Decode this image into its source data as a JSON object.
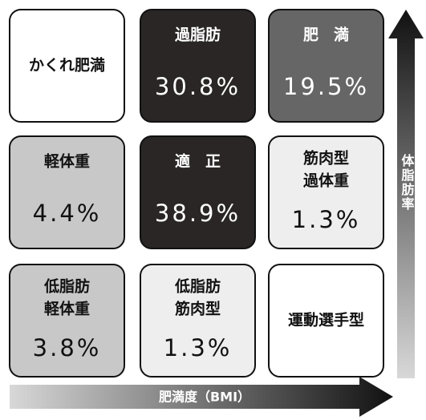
{
  "cells": [
    {
      "label": [
        "かくれ肥満"
      ]
    },
    {
      "label": [
        "過脂肪"
      ],
      "value": "30.8%"
    },
    {
      "label": [
        "肥　満"
      ],
      "value": "19.5%"
    },
    {
      "label": [
        "軽体重"
      ],
      "value": "4.4%"
    },
    {
      "label": [
        "適　正"
      ],
      "value": "38.9%"
    },
    {
      "label": [
        "筋肉型",
        "過体重"
      ],
      "value": "1.3%"
    },
    {
      "label": [
        "低脂肪",
        "軽体重"
      ],
      "value": "3.8%"
    },
    {
      "label": [
        "低脂肪",
        "筋肉型"
      ],
      "value": "1.3%"
    },
    {
      "label": [
        "運動選手型"
      ]
    }
  ],
  "axes": {
    "y": "体脂肪率",
    "x": "肥満度（BMI）"
  }
}
